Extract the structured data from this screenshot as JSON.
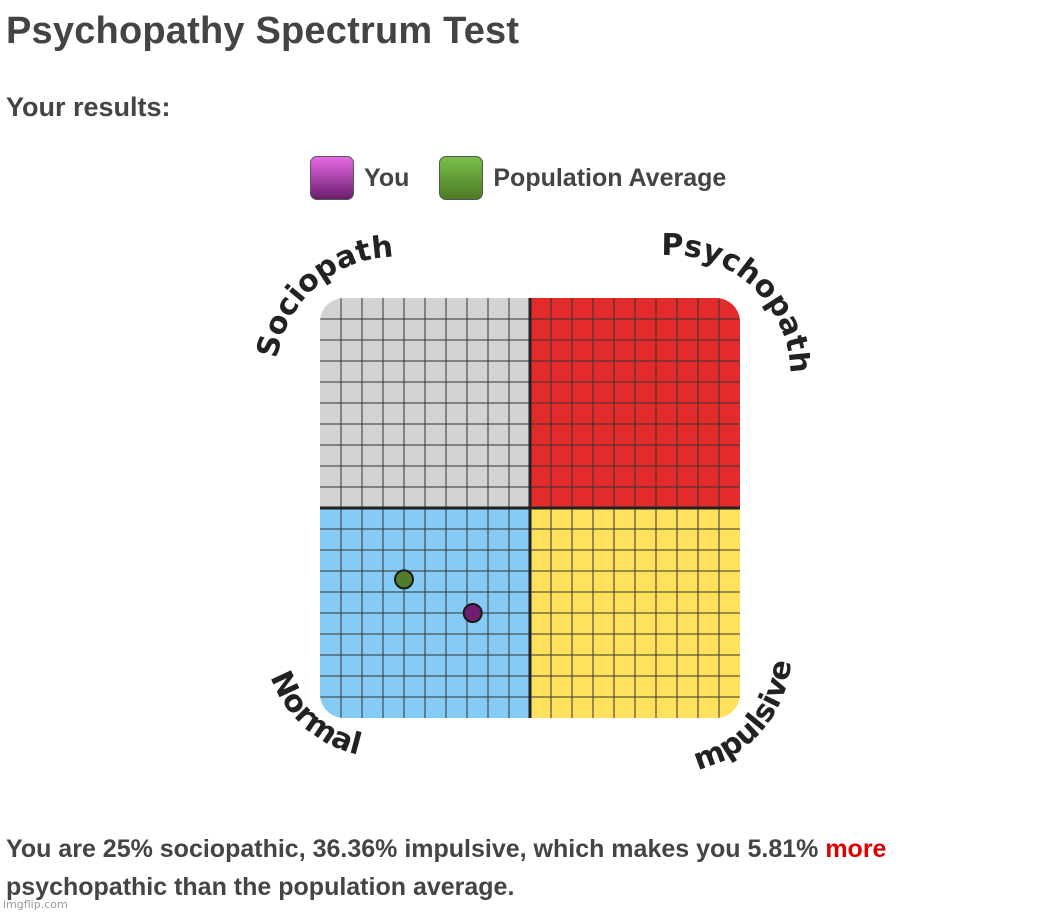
{
  "page": {
    "title": "Psychopathy Spectrum Test",
    "subtitle": "Your results:"
  },
  "legend": {
    "you": {
      "label": "You",
      "color": "#8a2a8e"
    },
    "average": {
      "label": "Population Average",
      "color": "#5a8a2e"
    }
  },
  "chart": {
    "quadrants": [
      {
        "label": "Sociopath",
        "color": "#d3d3d3"
      },
      {
        "label": "Psychopath",
        "color": "#e32b2b"
      },
      {
        "label": "Normal",
        "color": "#84cbf6"
      },
      {
        "label": "Impulsive",
        "color": "#ffe15c"
      }
    ],
    "markers": {
      "you": {
        "sociopathic_pct": 25,
        "impulsive_pct": 36.36,
        "color": "#6e1f72"
      },
      "average": {
        "sociopathic_pct": 33,
        "impulsive_pct": 20,
        "color": "#4f7d2a"
      }
    }
  },
  "result": {
    "text_before": "You are 25% sociopathic, 36.36% impulsive, which makes you 5.81% ",
    "highlight": "more",
    "text_after": "psychopathic than the population average."
  },
  "watermark": "imgflip.com"
}
